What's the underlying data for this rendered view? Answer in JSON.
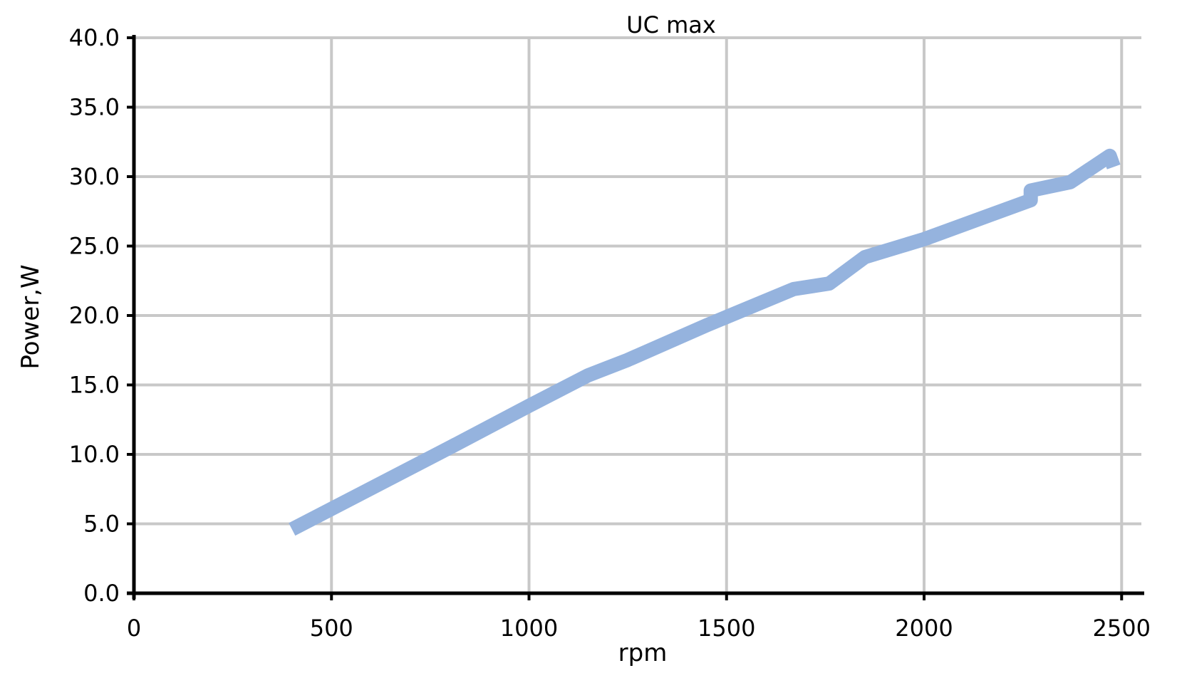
{
  "chart_data": {
    "type": "line",
    "title": "UC max",
    "xlabel": "rpm",
    "ylabel": "Power,W",
    "xlim": [
      0,
      2550
    ],
    "ylim": [
      0,
      40
    ],
    "x_ticks": [
      "0",
      "500",
      "1000",
      "1500",
      "2000",
      "2500"
    ],
    "x_tick_values": [
      0,
      500,
      1000,
      1500,
      2000,
      2500
    ],
    "y_ticks": [
      "0.0",
      "5.0",
      "10.0",
      "15.0",
      "20.0",
      "25.0",
      "30.0",
      "35.0",
      "40.0"
    ],
    "y_tick_values": [
      0,
      5,
      10,
      15,
      20,
      25,
      30,
      35,
      40
    ],
    "grid": true,
    "series": [
      {
        "color": "#95b3de",
        "x": [
          400,
          800,
          1000,
          1150,
          1250,
          1450,
          1670,
          1760,
          1850,
          2000,
          2270,
          2270,
          2370,
          2470,
          2480
        ],
        "y": [
          4.6,
          10.5,
          13.5,
          15.7,
          16.8,
          19.3,
          21.9,
          22.3,
          24.2,
          25.5,
          28.3,
          29.0,
          29.6,
          31.5,
          30.7
        ]
      }
    ]
  }
}
